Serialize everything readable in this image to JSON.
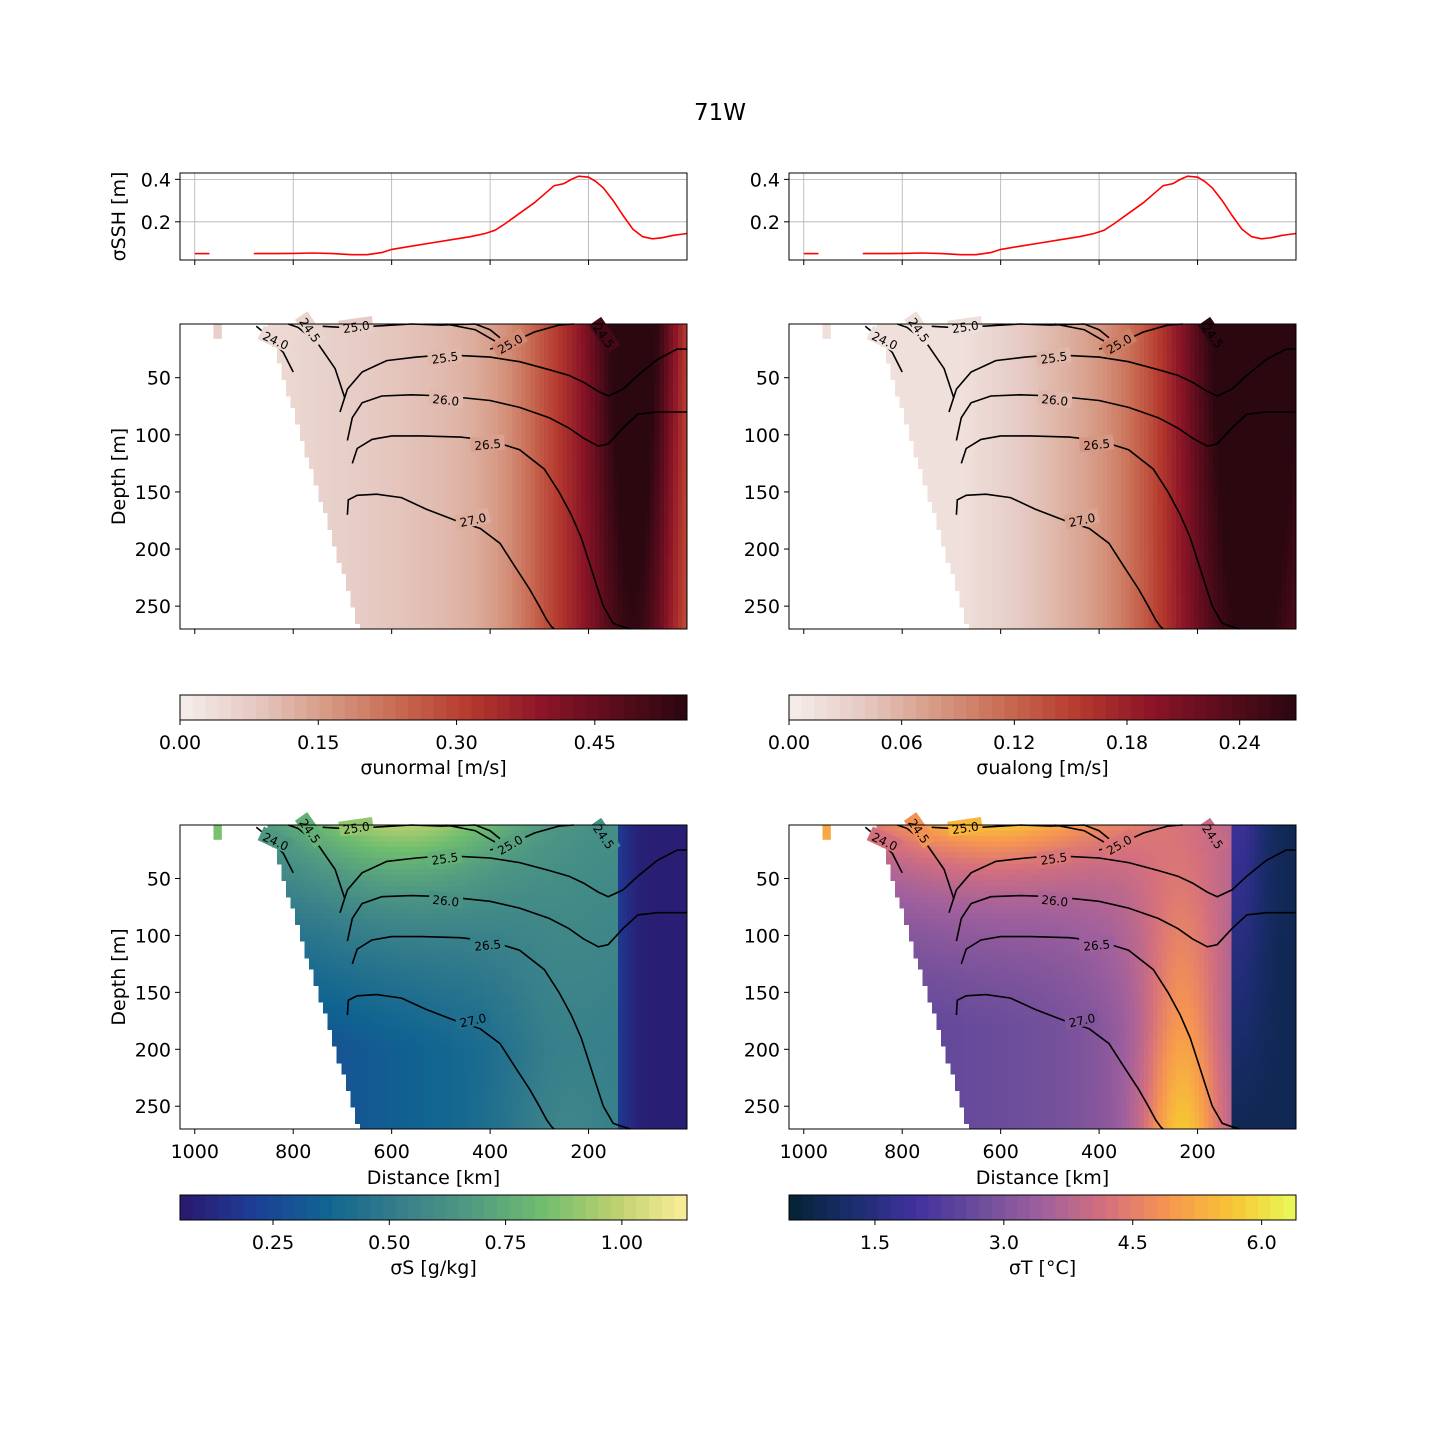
{
  "figure": {
    "title": "71W"
  },
  "colors": {
    "ssh_line": "#ff0000",
    "contour": "#000000",
    "grid": "#b0b0b0",
    "amp_ramp": [
      "#f6eeec",
      "#e6cbc4",
      "#d79b86",
      "#c86a52",
      "#b53a2e",
      "#8c1527",
      "#5a0c1c",
      "#2b0710"
    ],
    "haline_ramp": [
      "#2a186c",
      "#1e3d96",
      "#106491",
      "#357d8b",
      "#519a82",
      "#6fbd6f",
      "#bcd06e",
      "#fdee99"
    ],
    "thermal_ramp": [
      "#042333",
      "#1b2c6e",
      "#41319e",
      "#6b4d9b",
      "#a0609d",
      "#d5707d",
      "#f79650",
      "#f7c534",
      "#e8fa5b"
    ]
  },
  "chart_data": [
    {
      "type": "line",
      "panel": "ssh-left",
      "ylabel": "σSSH [m]",
      "yticks": [
        "0.2",
        "0.4"
      ],
      "xlim": [
        1030,
        0
      ],
      "ylim": [
        0.02,
        0.43
      ],
      "grid": true,
      "series": [
        {
          "x": [
            1000,
            985,
            970
          ],
          "y": [
            0.05,
            0.05,
            0.05
          ]
        },
        {
          "x": [
            880,
            840,
            800,
            760,
            720,
            680,
            650,
            620,
            600,
            560,
            520,
            480,
            440,
            410,
            390,
            370,
            340,
            310,
            290,
            270,
            250,
            235,
            220,
            200,
            185,
            170,
            150,
            130,
            110,
            90,
            70,
            50,
            30,
            15,
            0
          ],
          "y": [
            0.05,
            0.05,
            0.051,
            0.053,
            0.05,
            0.045,
            0.045,
            0.055,
            0.07,
            0.085,
            0.1,
            0.115,
            0.13,
            0.145,
            0.16,
            0.19,
            0.24,
            0.29,
            0.33,
            0.37,
            0.38,
            0.4,
            0.415,
            0.41,
            0.39,
            0.36,
            0.3,
            0.23,
            0.165,
            0.13,
            0.12,
            0.125,
            0.135,
            0.14,
            0.145
          ]
        }
      ]
    },
    {
      "type": "line",
      "panel": "ssh-right",
      "ylabel": "",
      "yticks": [
        "0.2",
        "0.4"
      ],
      "xlim": [
        1030,
        0
      ],
      "ylim": [
        0.02,
        0.43
      ],
      "grid": true,
      "series": [
        {
          "x": [
            1000,
            985,
            970
          ],
          "y": [
            0.05,
            0.05,
            0.05
          ]
        },
        {
          "x": [
            880,
            840,
            800,
            760,
            720,
            680,
            650,
            620,
            600,
            560,
            520,
            480,
            440,
            410,
            390,
            370,
            340,
            310,
            290,
            270,
            250,
            235,
            220,
            200,
            185,
            170,
            150,
            130,
            110,
            90,
            70,
            50,
            30,
            15,
            0
          ],
          "y": [
            0.05,
            0.05,
            0.051,
            0.053,
            0.05,
            0.045,
            0.045,
            0.055,
            0.07,
            0.085,
            0.1,
            0.115,
            0.13,
            0.145,
            0.16,
            0.19,
            0.24,
            0.29,
            0.33,
            0.37,
            0.38,
            0.4,
            0.415,
            0.41,
            0.39,
            0.36,
            0.3,
            0.23,
            0.165,
            0.13,
            0.12,
            0.125,
            0.135,
            0.14,
            0.145
          ]
        }
      ]
    },
    {
      "type": "heatmap",
      "panel": "unormal",
      "field": "unormal",
      "colormap": "amp",
      "ylabel": "Depth [m]",
      "xlabel": "",
      "xlim": [
        1030,
        0
      ],
      "ylim": [
        270,
        3
      ],
      "yticks": [
        "50",
        "100",
        "150",
        "200",
        "250"
      ],
      "colorbar": {
        "label": "σunormal [m/s]",
        "range": [
          0,
          0.55
        ],
        "ticks": [
          "0.00",
          "0.15",
          "0.30",
          "0.45"
        ],
        "tick_values": [
          0,
          0.15,
          0.3,
          0.45
        ]
      }
    },
    {
      "type": "heatmap",
      "panel": "ualong",
      "field": "ualong",
      "colormap": "amp",
      "ylabel": "",
      "xlabel": "",
      "xlim": [
        1030,
        0
      ],
      "ylim": [
        270,
        3
      ],
      "yticks": [
        "50",
        "100",
        "150",
        "200",
        "250"
      ],
      "colorbar": {
        "label": "σualong [m/s]",
        "range": [
          0,
          0.27
        ],
        "ticks": [
          "0.00",
          "0.06",
          "0.12",
          "0.18",
          "0.24"
        ],
        "tick_values": [
          0,
          0.06,
          0.12,
          0.18,
          0.24
        ]
      }
    },
    {
      "type": "heatmap",
      "panel": "salinity",
      "field": "salinity",
      "colormap": "haline",
      "ylabel": "Depth [m]",
      "xlabel": "Distance [km]",
      "xticks": [
        "1000",
        "800",
        "600",
        "400",
        "200"
      ],
      "xlim": [
        1030,
        0
      ],
      "ylim": [
        270,
        3
      ],
      "yticks": [
        "50",
        "100",
        "150",
        "200",
        "250"
      ],
      "colorbar": {
        "label": "σS [g/kg]",
        "range": [
          0.05,
          1.14
        ],
        "ticks": [
          "0.25",
          "0.50",
          "0.75",
          "1.00"
        ],
        "tick_values": [
          0.25,
          0.5,
          0.75,
          1.0
        ]
      }
    },
    {
      "type": "heatmap",
      "panel": "temperature",
      "field": "temperature",
      "colormap": "thermal",
      "ylabel": "",
      "xlabel": "Distance [km]",
      "xticks": [
        "1000",
        "800",
        "600",
        "400",
        "200"
      ],
      "xlim": [
        1030,
        0
      ],
      "ylim": [
        270,
        3
      ],
      "yticks": [
        "50",
        "100",
        "150",
        "200",
        "250"
      ],
      "colorbar": {
        "label": "σT [°C]",
        "range": [
          0.5,
          6.4
        ],
        "ticks": [
          "1.5",
          "3.0",
          "4.5",
          "6.0"
        ],
        "tick_values": [
          1.5,
          3.0,
          4.5,
          6.0
        ]
      }
    }
  ],
  "contours": [
    {
      "label": "24.0",
      "x": [
        875,
        855,
        820,
        800
      ],
      "y": [
        5,
        12,
        28,
        45
      ]
    },
    {
      "label": "24.5",
      "x": [
        810,
        790,
        750,
        715,
        695
      ],
      "y": [
        3,
        6,
        20,
        42,
        68
      ]
    },
    {
      "label": "25.0",
      "x": [
        740,
        700,
        640,
        560,
        500,
        430,
        400,
        380
      ],
      "y": [
        5,
        6,
        5,
        3,
        4,
        3,
        8,
        15
      ]
    },
    {
      "label": "25.0",
      "x": [
        490,
        430,
        390
      ],
      "y": [
        3,
        8,
        18
      ]
    },
    {
      "label": "25.0",
      "x": [
        400,
        360,
        310,
        260,
        230
      ],
      "y": [
        25,
        20,
        10,
        4,
        3
      ]
    },
    {
      "label": "24.5",
      "x": [
        180,
        170,
        155
      ],
      "y": [
        5,
        12,
        20
      ]
    },
    {
      "label": "25.5",
      "x": [
        705,
        690,
        660,
        610,
        550,
        490,
        400,
        340,
        280,
        240,
        210,
        180,
        160,
        130,
        100,
        60,
        20,
        0
      ],
      "y": [
        80,
        60,
        45,
        35,
        32,
        30,
        32,
        36,
        43,
        48,
        54,
        62,
        66,
        60,
        48,
        34,
        25,
        25
      ]
    },
    {
      "label": "26.0",
      "x": [
        690,
        680,
        660,
        620,
        560,
        490,
        400,
        340,
        280,
        240,
        210,
        180,
        160,
        130,
        100,
        60,
        30,
        0
      ],
      "y": [
        105,
        85,
        72,
        66,
        65,
        66,
        70,
        76,
        85,
        94,
        103,
        110,
        108,
        94,
        82,
        80,
        80,
        80
      ]
    },
    {
      "label": "26.5",
      "x": [
        680,
        670,
        640,
        600,
        540,
        460,
        400,
        340,
        290,
        260,
        235,
        215,
        200,
        185,
        170,
        150,
        130,
        115
      ],
      "y": [
        125,
        112,
        104,
        101,
        101,
        102,
        105,
        113,
        130,
        150,
        170,
        190,
        210,
        230,
        250,
        265,
        268,
        270
      ]
    },
    {
      "label": "27.0",
      "x": [
        690,
        688,
        670,
        630,
        580,
        530,
        470,
        420,
        380,
        350,
        320,
        300,
        285,
        275,
        270
      ],
      "y": [
        170,
        157,
        153,
        152,
        155,
        165,
        175,
        182,
        195,
        215,
        235,
        250,
        262,
        268,
        270
      ]
    }
  ],
  "contour_labels": [
    {
      "text": "24.0",
      "x": 835,
      "y": 17,
      "angle": 25
    },
    {
      "text": "24.5",
      "x": 765,
      "y": 8,
      "angle": 55
    },
    {
      "text": "25.0",
      "x": 672,
      "y": 5,
      "angle": -8
    },
    {
      "text": "25.0",
      "x": 360,
      "y": 20,
      "angle": -30
    },
    {
      "text": "24.5",
      "x": 168,
      "y": 13,
      "angle": 55
    },
    {
      "text": "25.5",
      "x": 492,
      "y": 32,
      "angle": -8
    },
    {
      "text": "26.0",
      "x": 490,
      "y": 69,
      "angle": 6
    },
    {
      "text": "26.5",
      "x": 405,
      "y": 108,
      "angle": -5
    },
    {
      "text": "27.0",
      "x": 435,
      "y": 174,
      "angle": -12
    }
  ]
}
